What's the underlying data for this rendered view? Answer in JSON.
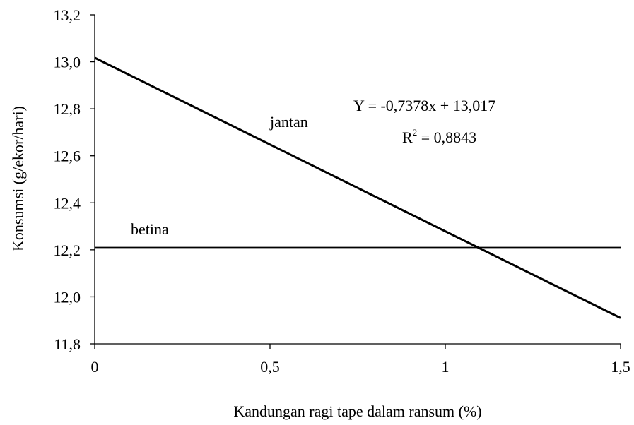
{
  "chart_data": {
    "type": "line",
    "title": "",
    "xlabel": "Kandungan ragi tape dalam ransum (%)",
    "ylabel": "Konsumsi (g/ekor/hari)",
    "xlim": [
      0,
      1.5
    ],
    "ylim": [
      11.8,
      13.2
    ],
    "x_ticks": [
      0,
      0.5,
      1,
      1.5
    ],
    "x_tick_labels": [
      "0",
      "0,5",
      "1",
      "1,5"
    ],
    "y_ticks": [
      11.8,
      12.0,
      12.2,
      12.4,
      12.6,
      12.8,
      13.0,
      13.2
    ],
    "y_tick_labels": [
      "11,8",
      "12,0",
      "12,2",
      "12,4",
      "12,6",
      "12,8",
      "13,0",
      "13,2"
    ],
    "grid": false,
    "series": [
      {
        "name": "jantan",
        "x": [
          0,
          1.5
        ],
        "y": [
          13.017,
          11.91
        ],
        "color": "#000000"
      },
      {
        "name": "betina",
        "x": [
          0,
          1.5
        ],
        "y": [
          12.21,
          12.21
        ],
        "color": "#000000"
      }
    ],
    "annotations": {
      "equation": "Y = -0,7378x + 13,017",
      "r2_prefix": "R",
      "r2_sup": "2",
      "r2_value": " = 0,8843"
    }
  }
}
